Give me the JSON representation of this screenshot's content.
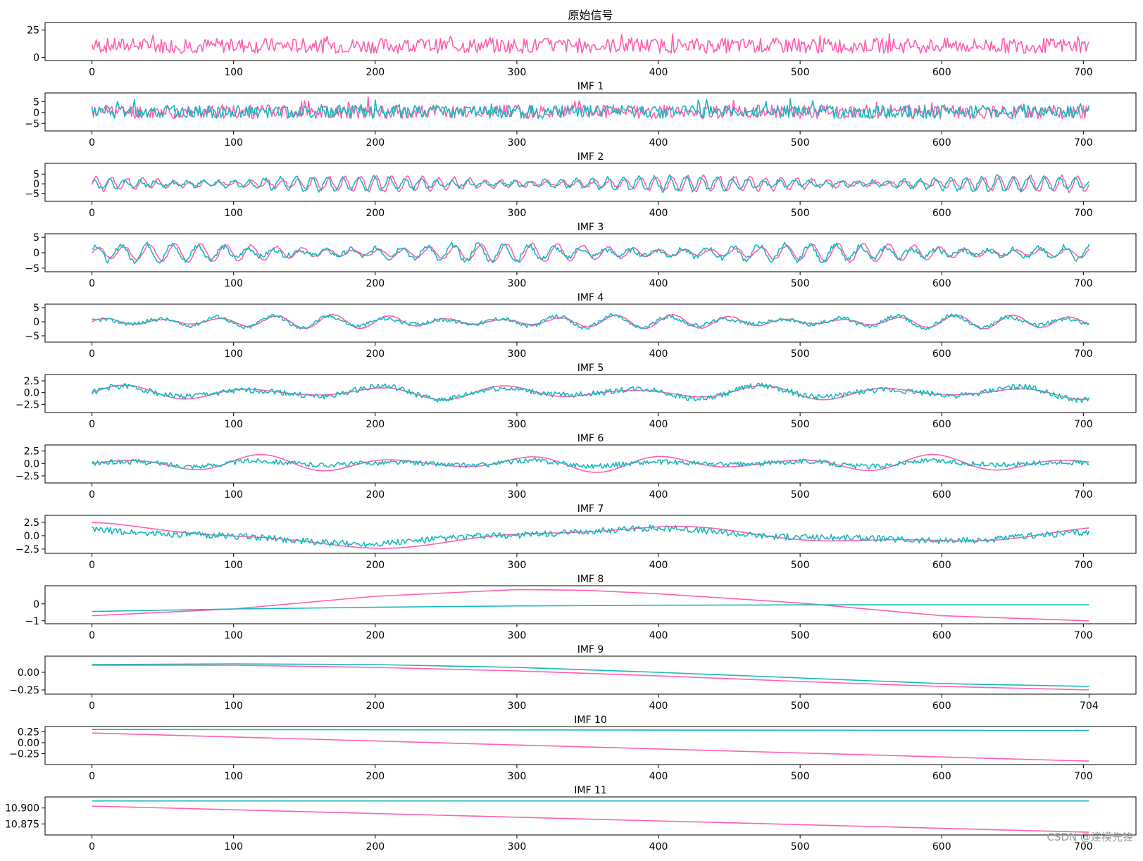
{
  "watermark": "CSDN @建模先锋",
  "colors": {
    "original": "#ff5fb0",
    "reconstructed": "#17b8be",
    "axis": "#000000"
  },
  "chart_data": [
    {
      "type": "line",
      "title": "原始信号",
      "xlim": [
        0,
        704
      ],
      "ylim": [
        -1,
        30
      ],
      "xticks": [
        0,
        100,
        200,
        300,
        400,
        500,
        600,
        700
      ],
      "yticks": [
        "0",
        "25"
      ],
      "series": [
        {
          "color": "#ff5fb0",
          "shape": "noise",
          "base": 10,
          "amp": 7,
          "seed": 7
        }
      ]
    },
    {
      "type": "line",
      "title": "IMF 1",
      "xlim": [
        0,
        704
      ],
      "ylim": [
        -7.5,
        8
      ],
      "xticks": [
        0,
        100,
        200,
        300,
        400,
        500,
        600,
        700
      ],
      "yticks": [
        "−5",
        "0",
        "5"
      ],
      "series": [
        {
          "color": "#ff5fb0",
          "shape": "noise",
          "base": 0,
          "amp": 3.2,
          "seed": 11
        },
        {
          "color": "#17b8be",
          "shape": "noise",
          "base": 0,
          "amp": 3.0,
          "seed": 12
        }
      ]
    },
    {
      "type": "line",
      "title": "IMF 2",
      "xlim": [
        0,
        704
      ],
      "ylim": [
        -8,
        9.5
      ],
      "xticks": [
        0,
        100,
        200,
        300,
        400,
        500,
        600,
        700
      ],
      "yticks": [
        "−5",
        "0",
        "5"
      ],
      "series": [
        {
          "color": "#ff5fb0",
          "shape": "osc",
          "period": 11,
          "amp": 4,
          "noise": 0.8,
          "seed": 21
        },
        {
          "color": "#17b8be",
          "shape": "osc",
          "period": 11,
          "amp": 3.8,
          "noise": 1.0,
          "seed": 22,
          "phase": 0.15
        }
      ]
    },
    {
      "type": "line",
      "title": "IMF 3",
      "xlim": [
        0,
        704
      ],
      "ylim": [
        -5.5,
        5.5
      ],
      "xticks": [
        0,
        100,
        200,
        300,
        400,
        500,
        600,
        700
      ],
      "yticks": [
        "−5",
        "0",
        "5"
      ],
      "series": [
        {
          "color": "#ff5fb0",
          "shape": "osc",
          "period": 18,
          "amp": 3,
          "noise": 0.3,
          "seed": 31
        },
        {
          "color": "#17b8be",
          "shape": "osc",
          "period": 18,
          "amp": 2.8,
          "noise": 0.8,
          "seed": 32,
          "phase": 0.1
        }
      ]
    },
    {
      "type": "line",
      "title": "IMF 4",
      "xlim": [
        0,
        704
      ],
      "ylim": [
        -6.5,
        5.5
      ],
      "xticks": [
        0,
        100,
        200,
        300,
        400,
        500,
        600,
        700
      ],
      "yticks": [
        "−5",
        "0",
        "5"
      ],
      "series": [
        {
          "color": "#ff5fb0",
          "shape": "osc",
          "period": 40,
          "amp": 2.5,
          "noise": 0.15,
          "seed": 41
        },
        {
          "color": "#17b8be",
          "shape": "osc",
          "period": 40,
          "amp": 2.3,
          "noise": 0.7,
          "seed": 42,
          "phase": 0.05
        }
      ]
    },
    {
      "type": "line",
      "title": "IMF 5",
      "xlim": [
        0,
        704
      ],
      "ylim": [
        -3.8,
        3.4
      ],
      "xticks": [
        0,
        100,
        200,
        300,
        400,
        500,
        600,
        700
      ],
      "yticks": [
        "−2.5",
        "0.0",
        "2.5"
      ],
      "series": [
        {
          "color": "#ff5fb0",
          "shape": "osc",
          "period": 90,
          "amp": 1.6,
          "noise": 0.0,
          "seed": 51
        },
        {
          "color": "#17b8be",
          "shape": "osc",
          "period": 90,
          "amp": 1.5,
          "noise": 0.6,
          "seed": 52
        }
      ]
    },
    {
      "type": "line",
      "title": "IMF 6",
      "xlim": [
        0,
        704
      ],
      "ylim": [
        -3.5,
        3.3
      ],
      "xticks": [
        0,
        100,
        200,
        300,
        400,
        500,
        600,
        700
      ],
      "yticks": [
        "−2.5",
        "0.0",
        "2.5"
      ],
      "series": [
        {
          "color": "#ff5fb0",
          "shape": "osc",
          "period": 95,
          "amp": 1.8,
          "noise": 0.0,
          "seed": 61
        },
        {
          "color": "#17b8be",
          "shape": "osc",
          "period": 95,
          "amp": 0.6,
          "noise": 0.5,
          "seed": 62
        }
      ]
    },
    {
      "type": "line",
      "title": "IMF 7",
      "xlim": [
        0,
        704
      ],
      "ylim": [
        -2.9,
        3.4
      ],
      "xticks": [
        0,
        100,
        200,
        300,
        400,
        500,
        600,
        700
      ],
      "yticks": [
        "−2.5",
        "0.0",
        "2.5"
      ],
      "series": [
        {
          "color": "#ff5fb0",
          "shape": "osc",
          "period": 380,
          "amp": 2.5,
          "noise": 0.0,
          "seed": 71,
          "phase": 0.25
        },
        {
          "color": "#17b8be",
          "shape": "osc",
          "period": 380,
          "amp": 1.5,
          "noise": 0.6,
          "seed": 72,
          "phase": 0.25
        }
      ]
    },
    {
      "type": "line",
      "title": "IMF 8",
      "xlim": [
        0,
        704
      ],
      "ylim": [
        -1.05,
        0.95
      ],
      "xticks": [
        0,
        100,
        200,
        300,
        400,
        500,
        600,
        700
      ],
      "yticks": [
        "−1",
        "0"
      ],
      "series": [
        {
          "color": "#ff5fb0",
          "shape": "points",
          "x": [
            0,
            100,
            200,
            300,
            350,
            400,
            500,
            600,
            704
          ],
          "y": [
            -0.7,
            -0.3,
            0.45,
            0.85,
            0.8,
            0.6,
            0.05,
            -0.7,
            -1.0
          ]
        },
        {
          "color": "#17b8be",
          "shape": "points",
          "x": [
            0,
            100,
            200,
            300,
            400,
            500,
            600,
            704
          ],
          "y": [
            -0.45,
            -0.3,
            -0.2,
            -0.12,
            -0.08,
            -0.06,
            -0.05,
            -0.05
          ]
        }
      ]
    },
    {
      "type": "line",
      "title": "IMF 9",
      "xlim": [
        0,
        704
      ],
      "ylim": [
        -0.28,
        0.2
      ],
      "xticks": [
        0,
        100,
        200,
        300,
        400,
        500,
        600,
        704
      ],
      "yticks": [
        "−0.25",
        "0.00"
      ],
      "series": [
        {
          "color": "#ff5fb0",
          "shape": "points",
          "x": [
            0,
            100,
            200,
            300,
            400,
            500,
            600,
            704
          ],
          "y": [
            0.1,
            0.1,
            0.07,
            0.02,
            -0.05,
            -0.13,
            -0.2,
            -0.25
          ]
        },
        {
          "color": "#17b8be",
          "shape": "points",
          "x": [
            0,
            100,
            200,
            300,
            400,
            500,
            600,
            704
          ],
          "y": [
            0.11,
            0.12,
            0.11,
            0.07,
            0.0,
            -0.08,
            -0.16,
            -0.2
          ]
        }
      ]
    },
    {
      "type": "line",
      "title": "IMF 10",
      "xlim": [
        0,
        704
      ],
      "ylim": [
        -0.45,
        0.32
      ],
      "xticks": [
        0,
        100,
        200,
        300,
        400,
        500,
        600,
        700
      ],
      "yticks": [
        "−0.25",
        "0.00",
        "0.25"
      ],
      "series": [
        {
          "color": "#ff5fb0",
          "shape": "points",
          "x": [
            0,
            704
          ],
          "y": [
            0.22,
            -0.42
          ]
        },
        {
          "color": "#17b8be",
          "shape": "points",
          "x": [
            0,
            704
          ],
          "y": [
            0.3,
            0.28
          ]
        }
      ]
    },
    {
      "type": "line",
      "title": "IMF 11",
      "xlim": [
        0,
        704
      ],
      "ylim": [
        10.861,
        10.914
      ],
      "xticks": [
        0,
        100,
        200,
        300,
        400,
        500,
        600,
        700
      ],
      "yticks": [
        "10.875",
        "10.900"
      ],
      "series": [
        {
          "color": "#ff5fb0",
          "shape": "points",
          "x": [
            0,
            704
          ],
          "y": [
            10.903,
            10.862
          ]
        },
        {
          "color": "#17b8be",
          "shape": "points",
          "x": [
            0,
            704
          ],
          "y": [
            10.911,
            10.911
          ]
        }
      ]
    }
  ]
}
